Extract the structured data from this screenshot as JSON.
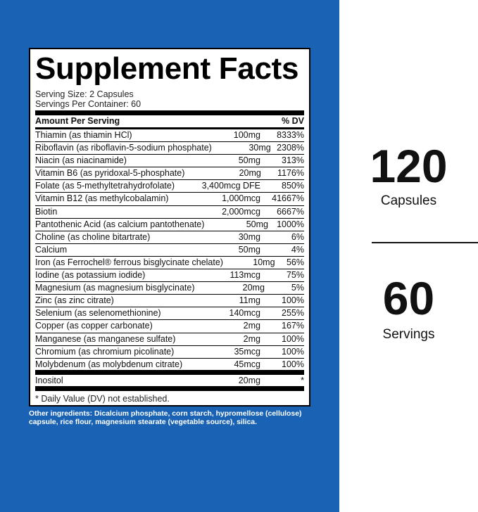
{
  "label": {
    "title": "Supplement Facts",
    "serving_size": "Serving Size: 2 Capsules",
    "servings_per_container": "Servings Per Container: 60",
    "header": {
      "amount": "Amount Per Serving",
      "dv": "% DV"
    },
    "rows": [
      [
        "Thiamin (as thiamin HCl)",
        "100mg",
        "8333%"
      ],
      [
        "Riboflavin (as riboflavin-5-sodium phosphate)",
        "30mg",
        "2308%"
      ],
      [
        "Niacin (as niacinamide)",
        "50mg",
        "313%"
      ],
      [
        "Vitamin B6 (as pyridoxal-5-phosphate)",
        "20mg",
        "1176%"
      ],
      [
        "Folate (as 5-methyltetrahydrofolate)",
        "3,400mcg DFE",
        "850%"
      ],
      [
        "Vitamin B12 (as methylcobalamin)",
        "1,000mcg",
        "41667%"
      ],
      [
        "Biotin",
        "2,000mcg",
        "6667%"
      ],
      [
        "Pantothenic Acid (as calcium pantothenate)",
        "50mg",
        "1000%"
      ],
      [
        "Choline (as choline bitartrate)",
        "30mg",
        "6%"
      ],
      [
        "Calcium",
        "50mg",
        "4%"
      ],
      [
        "Iron (as Ferrochel® ferrous bisglycinate chelate)",
        "10mg",
        "56%"
      ],
      [
        "Iodine (as potassium iodide)",
        "113mcg",
        "75%"
      ],
      [
        "Magnesium (as magnesium bisglycinate)",
        "20mg",
        "5%"
      ],
      [
        "Zinc (as zinc citrate)",
        "11mg",
        "100%"
      ],
      [
        "Selenium (as selenomethionine)",
        "140mcg",
        "255%"
      ],
      [
        "Copper (as copper carbonate)",
        "2mg",
        "167%"
      ],
      [
        "Manganese (as manganese sulfate)",
        "2mg",
        "100%"
      ],
      [
        "Chromium (as chromium picolinate)",
        "35mcg",
        "100%"
      ],
      [
        "Molybdenum (as molybdenum citrate)",
        "45mcg",
        "100%"
      ]
    ],
    "extra_row": [
      "Inositol",
      "20mg",
      "*"
    ],
    "footnote": "* Daily Value (DV) not established.",
    "other_ingredients": "Other ingredients: Dicalcium phosphate, corn starch, hypromellose (cellulose) capsule, rice flour, magnesium stearate (vegetable source), silica."
  },
  "stats": [
    {
      "number": "120",
      "unit": "Capsules"
    },
    {
      "number": "60",
      "unit": "Servings"
    }
  ]
}
